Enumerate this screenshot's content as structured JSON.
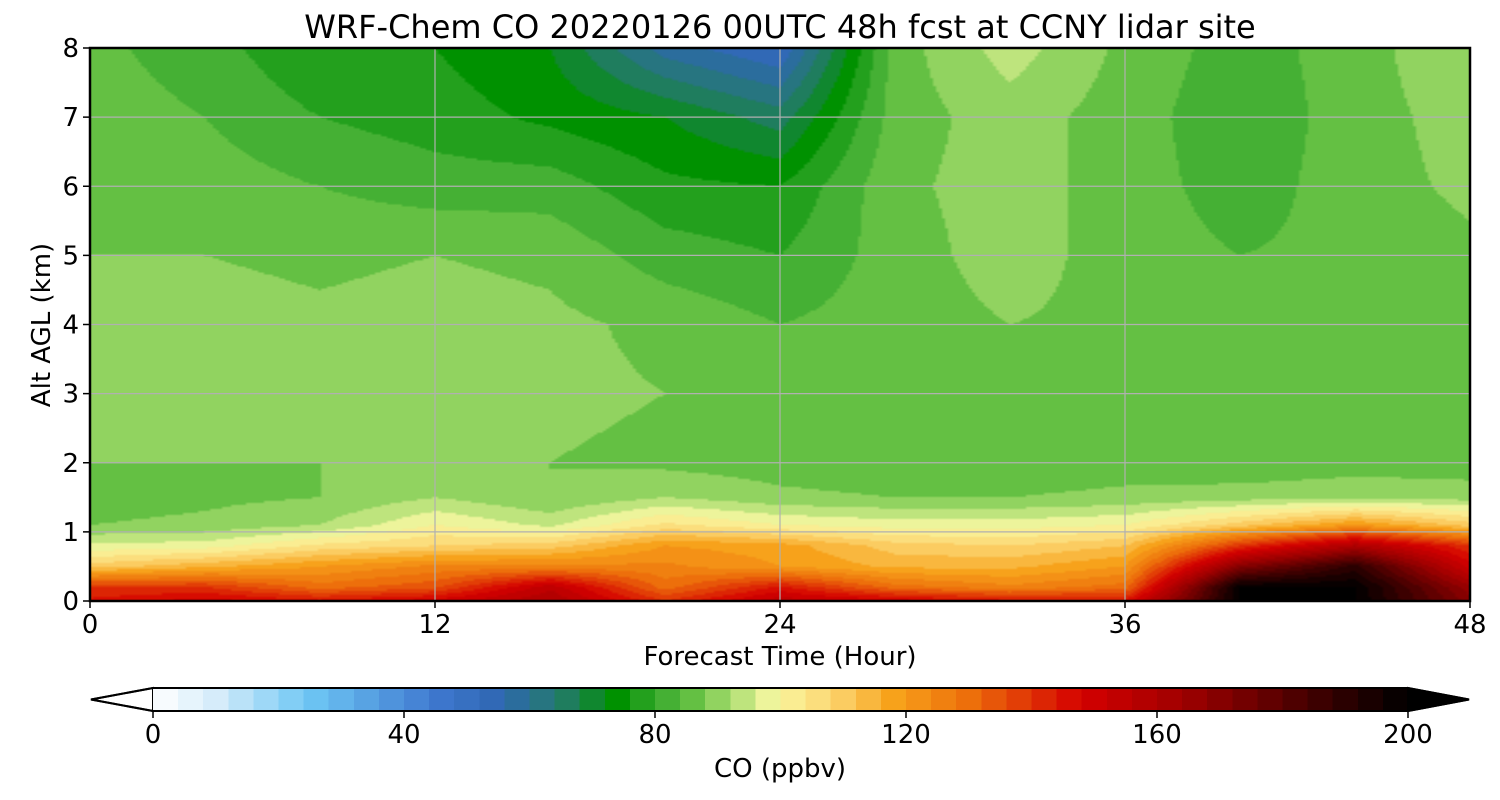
{
  "chart_data": {
    "type": "heatmap",
    "title": "WRF-Chem CO  20220126 00UTC 48h fcst at CCNY lidar site",
    "xlabel": "Forecast Time (Hour)",
    "ylabel": "Alt AGL (km)",
    "xlim": [
      0,
      48
    ],
    "ylim": [
      0,
      8
    ],
    "x_ticks": [
      0,
      12,
      24,
      36,
      48
    ],
    "y_ticks": [
      0,
      1,
      2,
      3,
      4,
      5,
      6,
      7,
      8
    ],
    "grid": true,
    "colorbar": {
      "label": "CO  (ppbv)",
      "range": [
        0,
        200
      ],
      "ticks": [
        0,
        40,
        80,
        120,
        160,
        200
      ],
      "extend": "both",
      "stops": [
        {
          "v": 0,
          "c": "#ffffff"
        },
        {
          "v": 10,
          "c": "#d6ecfa"
        },
        {
          "v": 25,
          "c": "#6dc6f4"
        },
        {
          "v": 45,
          "c": "#3f78cf"
        },
        {
          "v": 55,
          "c": "#2f67b3"
        },
        {
          "v": 65,
          "c": "#237b6a"
        },
        {
          "v": 74,
          "c": "#009100"
        },
        {
          "v": 80,
          "c": "#35a82c"
        },
        {
          "v": 86,
          "c": "#64c043"
        },
        {
          "v": 92,
          "c": "#a7dc6e"
        },
        {
          "v": 99,
          "c": "#f9f8a2"
        },
        {
          "v": 108,
          "c": "#fcd673"
        },
        {
          "v": 118,
          "c": "#f7a21b"
        },
        {
          "v": 130,
          "c": "#ed6f0b"
        },
        {
          "v": 148,
          "c": "#d40000"
        },
        {
          "v": 165,
          "c": "#9c0000"
        },
        {
          "v": 190,
          "c": "#2a0000"
        },
        {
          "v": 200,
          "c": "#000000"
        }
      ]
    },
    "x": [
      0,
      4,
      8,
      12,
      16,
      20,
      24,
      28,
      32,
      36,
      40,
      44,
      48
    ],
    "y": [
      0,
      0.2,
      0.5,
      0.8,
      1.1,
      1.5,
      2,
      3,
      4,
      5,
      6,
      7,
      8
    ],
    "z": [
      [
        145,
        150,
        145,
        150,
        160,
        140,
        155,
        150,
        145,
        145,
        200,
        200,
        170
      ],
      [
        140,
        140,
        130,
        135,
        155,
        130,
        145,
        130,
        125,
        130,
        200,
        200,
        165
      ],
      [
        110,
        115,
        120,
        125,
        125,
        125,
        120,
        115,
        115,
        120,
        170,
        190,
        150
      ],
      [
        97,
        98,
        105,
        108,
        110,
        120,
        118,
        110,
        108,
        112,
        140,
        160,
        140
      ],
      [
        88,
        89,
        92,
        100,
        95,
        105,
        100,
        98,
        98,
        100,
        110,
        120,
        110
      ],
      [
        86,
        87,
        88,
        92,
        88,
        92,
        89,
        88,
        88,
        89,
        90,
        91,
        90
      ],
      [
        88,
        88,
        88,
        89,
        88,
        87,
        86,
        85,
        85,
        86,
        85,
        86,
        86
      ],
      [
        92,
        91,
        90,
        90,
        89,
        88,
        86,
        86,
        87,
        86,
        85,
        86,
        87
      ],
      [
        91,
        90,
        89,
        90,
        89,
        87,
        84,
        86,
        88,
        87,
        85,
        86,
        88
      ],
      [
        88,
        88,
        87,
        88,
        87,
        82,
        80,
        86,
        90,
        86,
        84,
        85,
        87
      ],
      [
        86,
        86,
        84,
        82,
        82,
        77,
        76,
        87,
        90,
        86,
        82,
        86,
        89
      ],
      [
        86,
        84,
        80,
        78,
        75,
        72,
        66,
        86,
        90,
        86,
        81,
        86,
        90
      ],
      [
        85,
        82,
        76,
        76,
        72,
        58,
        52,
        86,
        94,
        87,
        82,
        86,
        92
      ]
    ]
  }
}
